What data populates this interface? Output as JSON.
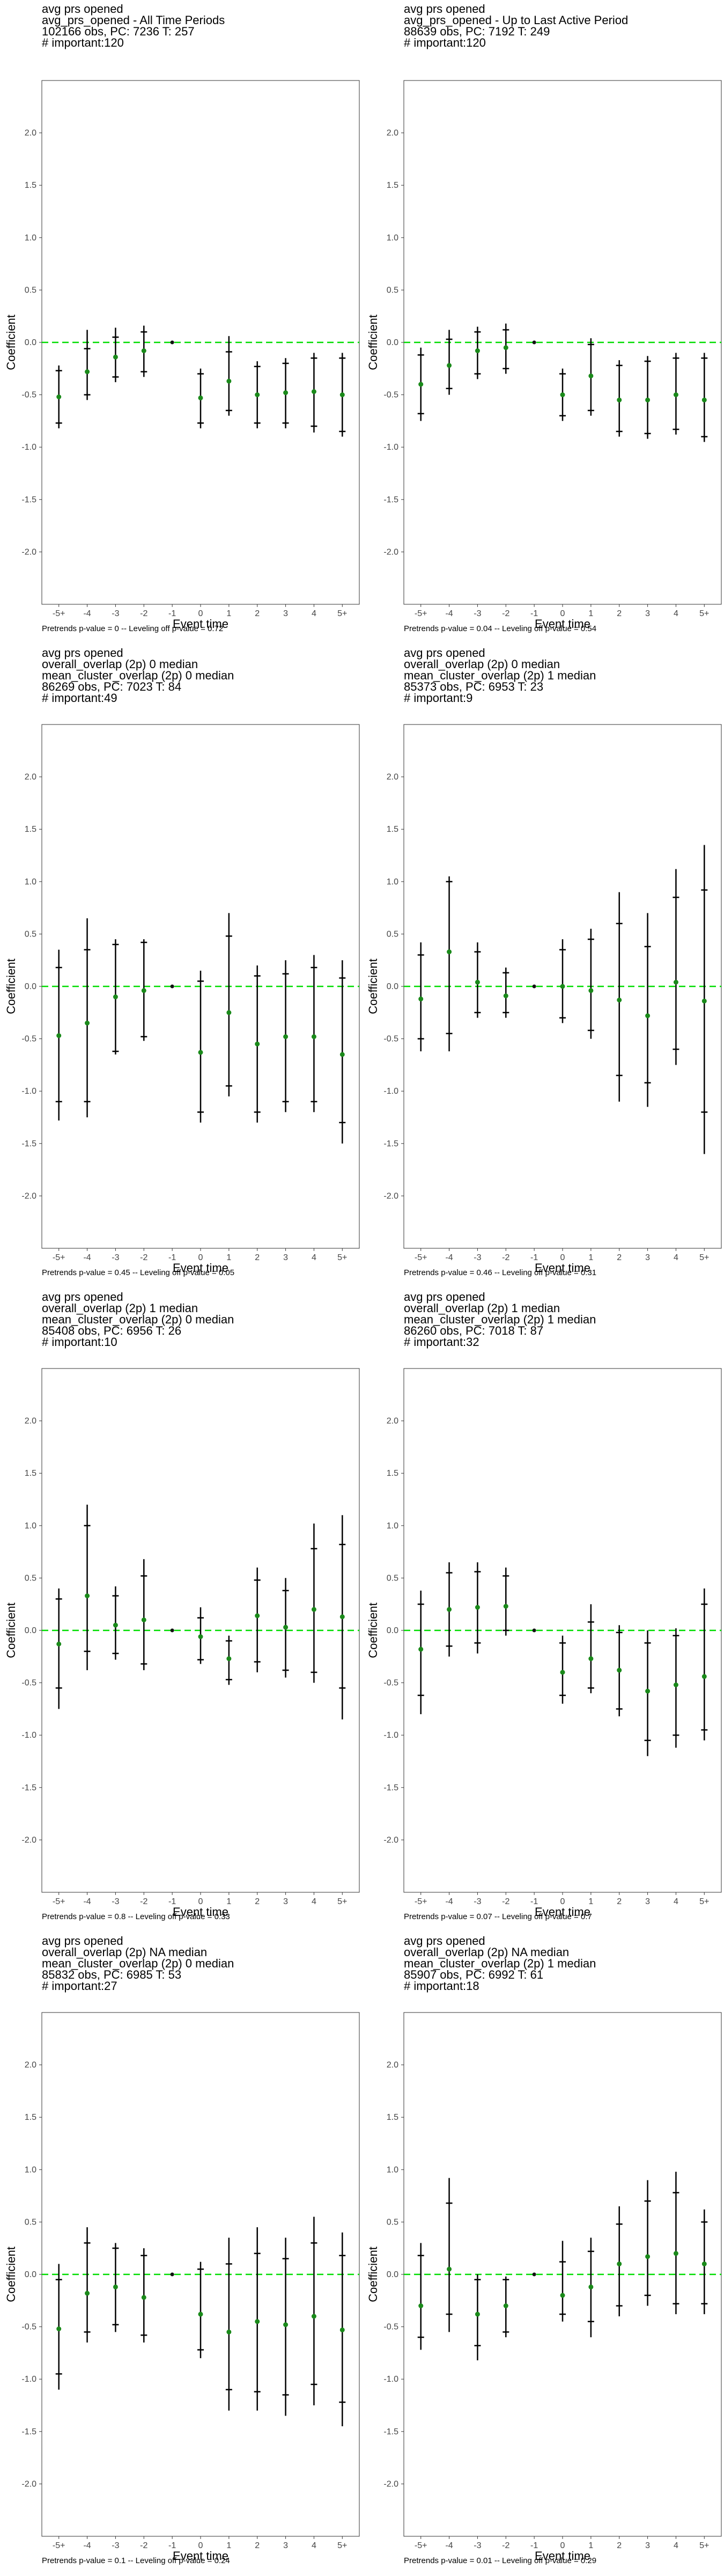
{
  "chart_data": [
    {
      "type": "scatter",
      "titles": [
        "avg prs opened",
        "avg_prs_opened - All Time Periods",
        "102166 obs, PC: 7236 T: 257",
        "# important:120"
      ],
      "footer": "Pretrends p-value = 0 -- Leveling off p-value = 0.72",
      "xlabel": "Event time",
      "ylabel": "Coefficient",
      "categories": [
        "-5+",
        "-4",
        "-3",
        "-2",
        "-1",
        "0",
        "1",
        "2",
        "3",
        "4",
        "5+"
      ],
      "ylim": [
        -2.5,
        2.5
      ],
      "yticks": [
        -2.0,
        -1.5,
        -1.0,
        -0.5,
        0.0,
        0.5,
        1.0,
        1.5,
        2.0
      ],
      "ytick_labels": [
        "-2.0",
        "-1.5",
        "-1.0",
        "-0.5",
        "0.0",
        "0.5",
        "1.0",
        "1.5",
        "2.0"
      ],
      "estimate": [
        -0.52,
        -0.28,
        -0.14,
        -0.08,
        0,
        -0.53,
        -0.37,
        -0.5,
        -0.48,
        -0.47,
        -0.5
      ],
      "ci95": [
        [
          -0.82,
          -0.22
        ],
        [
          -0.55,
          0.12
        ],
        [
          -0.38,
          0.14
        ],
        [
          -0.33,
          0.16
        ],
        [
          0,
          0
        ],
        [
          -0.82,
          -0.25
        ],
        [
          -0.7,
          0.06
        ],
        [
          -0.82,
          -0.18
        ],
        [
          -0.82,
          -0.15
        ],
        [
          -0.86,
          -0.1
        ],
        [
          -0.9,
          -0.1
        ]
      ],
      "ci90": [
        [
          -0.77,
          -0.27
        ],
        [
          -0.5,
          -0.06
        ],
        [
          -0.33,
          0.05
        ],
        [
          -0.28,
          0.1
        ],
        [
          0,
          0
        ],
        [
          -0.77,
          -0.3
        ],
        [
          -0.65,
          -0.09
        ],
        [
          -0.77,
          -0.23
        ],
        [
          -0.77,
          -0.2
        ],
        [
          -0.8,
          -0.15
        ],
        [
          -0.85,
          -0.15
        ]
      ],
      "reference_line": 0,
      "colors": {
        "point": "#1a8a1a",
        "reference": "#00dd00",
        "ci": "#000000"
      }
    },
    {
      "type": "scatter",
      "titles": [
        "avg prs opened",
        "avg_prs_opened - Up to Last Active Period",
        "88639 obs, PC: 7192 T: 249",
        "# important:120"
      ],
      "footer": "Pretrends p-value = 0.04 -- Leveling off p-value = 0.54",
      "xlabel": "Event time",
      "ylabel": "Coefficient",
      "categories": [
        "-5+",
        "-4",
        "-3",
        "-2",
        "-1",
        "0",
        "1",
        "2",
        "3",
        "4",
        "5+"
      ],
      "ylim": [
        -2.5,
        2.5
      ],
      "yticks": [
        -2.0,
        -1.5,
        -1.0,
        -0.5,
        0.0,
        0.5,
        1.0,
        1.5,
        2.0
      ],
      "ytick_labels": [
        "-2.0",
        "-1.5",
        "-1.0",
        "-0.5",
        "0.0",
        "0.5",
        "1.0",
        "1.5",
        "2.0"
      ],
      "estimate": [
        -0.4,
        -0.22,
        -0.08,
        -0.05,
        0,
        -0.5,
        -0.32,
        -0.55,
        -0.55,
        -0.5,
        -0.55
      ],
      "ci95": [
        [
          -0.75,
          -0.05
        ],
        [
          -0.5,
          0.12
        ],
        [
          -0.35,
          0.15
        ],
        [
          -0.3,
          0.18
        ],
        [
          0,
          0
        ],
        [
          -0.75,
          -0.25
        ],
        [
          -0.7,
          0.04
        ],
        [
          -0.9,
          -0.17
        ],
        [
          -0.92,
          -0.13
        ],
        [
          -0.88,
          -0.1
        ],
        [
          -0.95,
          -0.1
        ]
      ],
      "ci90": [
        [
          -0.68,
          -0.12
        ],
        [
          -0.44,
          0.03
        ],
        [
          -0.3,
          0.1
        ],
        [
          -0.25,
          0.12
        ],
        [
          0,
          0
        ],
        [
          -0.7,
          -0.3
        ],
        [
          -0.65,
          -0.02
        ],
        [
          -0.85,
          -0.22
        ],
        [
          -0.87,
          -0.18
        ],
        [
          -0.83,
          -0.15
        ],
        [
          -0.9,
          -0.15
        ]
      ],
      "reference_line": 0,
      "colors": {
        "point": "#1a8a1a",
        "reference": "#00dd00",
        "ci": "#000000"
      }
    },
    {
      "type": "scatter",
      "titles": [
        "avg prs opened",
        "overall_overlap (2p) 0 median",
        "mean_cluster_overlap (2p) 0 median",
        "86269 obs, PC: 7023 T: 84",
        "# important:49"
      ],
      "footer": "Pretrends p-value = 0.45 -- Leveling off p-value = 0.05",
      "xlabel": "Event time",
      "ylabel": "Coefficient",
      "categories": [
        "-5+",
        "-4",
        "-3",
        "-2",
        "-1",
        "0",
        "1",
        "2",
        "3",
        "4",
        "5+"
      ],
      "ylim": [
        -2.5,
        2.5
      ],
      "yticks": [
        -2.0,
        -1.5,
        -1.0,
        -0.5,
        0.0,
        0.5,
        1.0,
        1.5,
        2.0
      ],
      "ytick_labels": [
        "-2.0",
        "-1.5",
        "-1.0",
        "-0.5",
        "0.0",
        "0.5",
        "1.0",
        "1.5",
        "2.0"
      ],
      "estimate": [
        -0.47,
        -0.35,
        -0.1,
        -0.04,
        0,
        -0.63,
        -0.25,
        -0.55,
        -0.48,
        -0.48,
        -0.65
      ],
      "ci95": [
        [
          -1.28,
          0.35
        ],
        [
          -1.25,
          0.65
        ],
        [
          -0.65,
          0.45
        ],
        [
          -0.52,
          0.45
        ],
        [
          0,
          0
        ],
        [
          -1.3,
          0.15
        ],
        [
          -1.05,
          0.7
        ],
        [
          -1.3,
          0.2
        ],
        [
          -1.2,
          0.25
        ],
        [
          -1.2,
          0.3
        ],
        [
          -1.5,
          0.25
        ]
      ],
      "ci90": [
        [
          -1.1,
          0.18
        ],
        [
          -1.1,
          0.35
        ],
        [
          -0.62,
          0.4
        ],
        [
          -0.48,
          0.42
        ],
        [
          0,
          0
        ],
        [
          -1.2,
          0.05
        ],
        [
          -0.95,
          0.48
        ],
        [
          -1.2,
          0.1
        ],
        [
          -1.1,
          0.12
        ],
        [
          -1.1,
          0.18
        ],
        [
          -1.3,
          0.08
        ]
      ],
      "reference_line": 0,
      "colors": {
        "point": "#1a8a1a",
        "reference": "#00dd00",
        "ci": "#000000"
      }
    },
    {
      "type": "scatter",
      "titles": [
        "avg prs opened",
        "overall_overlap (2p) 0 median",
        "mean_cluster_overlap (2p) 1 median",
        "85373 obs, PC: 6953 T: 23",
        "# important:9"
      ],
      "footer": "Pretrends p-value = 0.46 -- Leveling off p-value = 0.31",
      "xlabel": "Event time",
      "ylabel": "Coefficient",
      "categories": [
        "-5+",
        "-4",
        "-3",
        "-2",
        "-1",
        "0",
        "1",
        "2",
        "3",
        "4",
        "5+"
      ],
      "ylim": [
        -2.5,
        2.5
      ],
      "yticks": [
        -2.0,
        -1.5,
        -1.0,
        -0.5,
        0.0,
        0.5,
        1.0,
        1.5,
        2.0
      ],
      "ytick_labels": [
        "-2.0",
        "-1.5",
        "-1.0",
        "-0.5",
        "0.0",
        "0.5",
        "1.0",
        "1.5",
        "2.0"
      ],
      "estimate": [
        -0.12,
        0.33,
        0.04,
        -0.09,
        0,
        0.0,
        -0.04,
        -0.13,
        -0.28,
        0.04,
        -0.14
      ],
      "ci95": [
        [
          -0.62,
          0.42
        ],
        [
          -0.62,
          1.05
        ],
        [
          -0.3,
          0.42
        ],
        [
          -0.3,
          0.18
        ],
        [
          0,
          0
        ],
        [
          -0.35,
          0.45
        ],
        [
          -0.5,
          0.55
        ],
        [
          -1.1,
          0.9
        ],
        [
          -1.15,
          0.7
        ],
        [
          -0.75,
          1.12
        ],
        [
          -1.6,
          1.35
        ]
      ],
      "ci90": [
        [
          -0.5,
          0.3
        ],
        [
          -0.45,
          1.0
        ],
        [
          -0.25,
          0.33
        ],
        [
          -0.25,
          0.13
        ],
        [
          0,
          0
        ],
        [
          -0.3,
          0.35
        ],
        [
          -0.42,
          0.45
        ],
        [
          -0.85,
          0.6
        ],
        [
          -0.92,
          0.38
        ],
        [
          -0.6,
          0.85
        ],
        [
          -1.2,
          0.92
        ]
      ],
      "reference_line": 0,
      "colors": {
        "point": "#1a8a1a",
        "reference": "#00dd00",
        "ci": "#000000"
      }
    },
    {
      "type": "scatter",
      "titles": [
        "avg prs opened",
        "overall_overlap (2p) 1 median",
        "mean_cluster_overlap (2p) 0 median",
        "85408 obs, PC: 6956 T: 26",
        "# important:10"
      ],
      "footer": "Pretrends p-value = 0.8 -- Leveling off p-value = 0.33",
      "xlabel": "Event time",
      "ylabel": "Coefficient",
      "categories": [
        "-5+",
        "-4",
        "-3",
        "-2",
        "-1",
        "0",
        "1",
        "2",
        "3",
        "4",
        "5+"
      ],
      "ylim": [
        -2.5,
        2.5
      ],
      "yticks": [
        -2.0,
        -1.5,
        -1.0,
        -0.5,
        0.0,
        0.5,
        1.0,
        1.5,
        2.0
      ],
      "ytick_labels": [
        "-2.0",
        "-1.5",
        "-1.0",
        "-0.5",
        "0.0",
        "0.5",
        "1.0",
        "1.5",
        "2.0"
      ],
      "estimate": [
        -0.13,
        0.33,
        0.05,
        0.1,
        0,
        -0.06,
        -0.27,
        0.14,
        0.03,
        0.2,
        0.13
      ],
      "ci95": [
        [
          -0.75,
          0.4
        ],
        [
          -0.38,
          1.2
        ],
        [
          -0.28,
          0.42
        ],
        [
          -0.38,
          0.68
        ],
        [
          0,
          0
        ],
        [
          -0.32,
          0.22
        ],
        [
          -0.52,
          -0.05
        ],
        [
          -0.4,
          0.6
        ],
        [
          -0.45,
          0.5
        ],
        [
          -0.5,
          1.02
        ],
        [
          -0.85,
          1.1
        ]
      ],
      "ci90": [
        [
          -0.55,
          0.3
        ],
        [
          -0.2,
          1.0
        ],
        [
          -0.22,
          0.33
        ],
        [
          -0.32,
          0.52
        ],
        [
          0,
          0
        ],
        [
          -0.28,
          0.12
        ],
        [
          -0.47,
          -0.1
        ],
        [
          -0.3,
          0.48
        ],
        [
          -0.38,
          0.38
        ],
        [
          -0.4,
          0.78
        ],
        [
          -0.55,
          0.82
        ]
      ],
      "reference_line": 0,
      "colors": {
        "point": "#1a8a1a",
        "reference": "#00dd00",
        "ci": "#000000"
      }
    },
    {
      "type": "scatter",
      "titles": [
        "avg prs opened",
        "overall_overlap (2p) 1 median",
        "mean_cluster_overlap (2p) 1 median",
        "86260 obs, PC: 7018 T: 87",
        "# important:32"
      ],
      "footer": "Pretrends p-value = 0.07 -- Leveling off p-value = 0.7",
      "xlabel": "Event time",
      "ylabel": "Coefficient",
      "categories": [
        "-5+",
        "-4",
        "-3",
        "-2",
        "-1",
        "0",
        "1",
        "2",
        "3",
        "4",
        "5+"
      ],
      "ylim": [
        -2.5,
        2.5
      ],
      "yticks": [
        -2.0,
        -1.5,
        -1.0,
        -0.5,
        0.0,
        0.5,
        1.0,
        1.5,
        2.0
      ],
      "ytick_labels": [
        "-2.0",
        "-1.5",
        "-1.0",
        "-0.5",
        "0.0",
        "0.5",
        "1.0",
        "1.5",
        "2.0"
      ],
      "estimate": [
        -0.18,
        0.2,
        0.22,
        0.23,
        0,
        -0.4,
        -0.27,
        -0.38,
        -0.58,
        -0.52,
        -0.44
      ],
      "ci95": [
        [
          -0.8,
          0.38
        ],
        [
          -0.25,
          0.65
        ],
        [
          -0.22,
          0.65
        ],
        [
          -0.05,
          0.6
        ],
        [
          0,
          0
        ],
        [
          -0.7,
          -0.05
        ],
        [
          -0.6,
          0.25
        ],
        [
          -0.82,
          0.05
        ],
        [
          -1.2,
          0.0
        ],
        [
          -1.12,
          0.02
        ],
        [
          -1.05,
          0.4
        ]
      ],
      "ci90": [
        [
          -0.62,
          0.25
        ],
        [
          -0.15,
          0.55
        ],
        [
          -0.12,
          0.56
        ],
        [
          0.0,
          0.52
        ],
        [
          0,
          0
        ],
        [
          -0.62,
          -0.12
        ],
        [
          -0.55,
          0.08
        ],
        [
          -0.75,
          -0.02
        ],
        [
          -1.05,
          -0.12
        ],
        [
          -1.0,
          -0.05
        ],
        [
          -0.95,
          0.25
        ]
      ],
      "reference_line": 0,
      "colors": {
        "point": "#1a8a1a",
        "reference": "#00dd00",
        "ci": "#000000"
      }
    },
    {
      "type": "scatter",
      "titles": [
        "avg prs opened",
        "overall_overlap (2p) NA median",
        "mean_cluster_overlap (2p) 0 median",
        "85832 obs, PC: 6985 T: 53",
        "# important:27"
      ],
      "footer": "Pretrends p-value = 0.1 -- Leveling off p-value = 0.24",
      "xlabel": "Event time",
      "ylabel": "Coefficient",
      "categories": [
        "-5+",
        "-4",
        "-3",
        "-2",
        "-1",
        "0",
        "1",
        "2",
        "3",
        "4",
        "5+"
      ],
      "ylim": [
        -2.5,
        2.5
      ],
      "yticks": [
        -2.0,
        -1.5,
        -1.0,
        -0.5,
        0.0,
        0.5,
        1.0,
        1.5,
        2.0
      ],
      "ytick_labels": [
        "-2.0",
        "-1.5",
        "-1.0",
        "-0.5",
        "0.0",
        "0.5",
        "1.0",
        "1.5",
        "2.0"
      ],
      "estimate": [
        -0.52,
        -0.18,
        -0.12,
        -0.22,
        0,
        -0.38,
        -0.55,
        -0.45,
        -0.48,
        -0.4,
        -0.53
      ],
      "ci95": [
        [
          -1.1,
          0.1
        ],
        [
          -0.65,
          0.45
        ],
        [
          -0.55,
          0.3
        ],
        [
          -0.65,
          0.25
        ],
        [
          0,
          0
        ],
        [
          -0.8,
          0.12
        ],
        [
          -1.3,
          0.35
        ],
        [
          -1.3,
          0.45
        ],
        [
          -1.35,
          0.35
        ],
        [
          -1.25,
          0.55
        ],
        [
          -1.45,
          0.4
        ]
      ],
      "ci90": [
        [
          -0.95,
          -0.05
        ],
        [
          -0.55,
          0.3
        ],
        [
          -0.48,
          0.25
        ],
        [
          -0.58,
          0.18
        ],
        [
          0,
          0
        ],
        [
          -0.72,
          0.05
        ],
        [
          -1.1,
          0.1
        ],
        [
          -1.12,
          0.2
        ],
        [
          -1.15,
          0.15
        ],
        [
          -1.05,
          0.3
        ],
        [
          -1.22,
          0.18
        ]
      ],
      "reference_line": 0,
      "colors": {
        "point": "#1a8a1a",
        "reference": "#00dd00",
        "ci": "#000000"
      }
    },
    {
      "type": "scatter",
      "titles": [
        "avg prs opened",
        "overall_overlap (2p) NA median",
        "mean_cluster_overlap (2p) 1 median",
        "85907 obs, PC: 6992 T: 61",
        "# important:18"
      ],
      "footer": "Pretrends p-value = 0.01 -- Leveling off p-value = 0.29",
      "xlabel": "Event time",
      "ylabel": "Coefficient",
      "categories": [
        "-5+",
        "-4",
        "-3",
        "-2",
        "-1",
        "0",
        "1",
        "2",
        "3",
        "4",
        "5+"
      ],
      "ylim": [
        -2.5,
        2.5
      ],
      "yticks": [
        -2.0,
        -1.5,
        -1.0,
        -0.5,
        0.0,
        0.5,
        1.0,
        1.5,
        2.0
      ],
      "ytick_labels": [
        "-2.0",
        "-1.5",
        "-1.0",
        "-0.5",
        "0.0",
        "0.5",
        "1.0",
        "1.5",
        "2.0"
      ],
      "estimate": [
        -0.3,
        0.05,
        -0.38,
        -0.3,
        0,
        -0.2,
        -0.12,
        0.1,
        0.17,
        0.2,
        0.1
      ],
      "ci95": [
        [
          -0.72,
          0.3
        ],
        [
          -0.55,
          0.92
        ],
        [
          -0.82,
          0.0
        ],
        [
          -0.6,
          -0.02
        ],
        [
          0,
          0
        ],
        [
          -0.45,
          0.32
        ],
        [
          -0.6,
          0.35
        ],
        [
          -0.4,
          0.65
        ],
        [
          -0.3,
          0.9
        ],
        [
          -0.38,
          0.98
        ],
        [
          -0.38,
          0.62
        ]
      ],
      "ci90": [
        [
          -0.6,
          0.18
        ],
        [
          -0.38,
          0.68
        ],
        [
          -0.68,
          -0.05
        ],
        [
          -0.55,
          -0.05
        ],
        [
          0,
          0
        ],
        [
          -0.38,
          0.12
        ],
        [
          -0.45,
          0.22
        ],
        [
          -0.3,
          0.48
        ],
        [
          -0.2,
          0.7
        ],
        [
          -0.28,
          0.78
        ],
        [
          -0.28,
          0.5
        ]
      ],
      "reference_line": 0,
      "colors": {
        "point": "#1a8a1a",
        "reference": "#00dd00",
        "ci": "#000000"
      }
    }
  ]
}
